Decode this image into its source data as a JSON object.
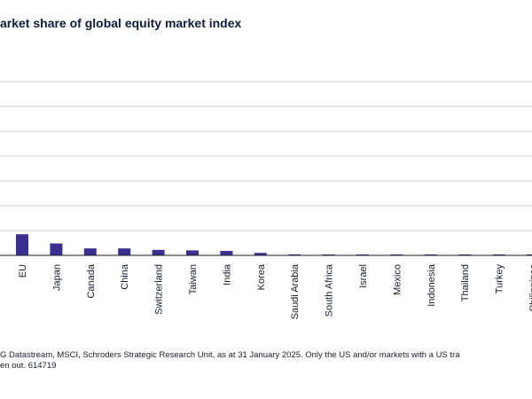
{
  "title": "arket share of global equity market index",
  "source": {
    "line1": "G Datastream, MSCI, Schroders Strategic Research Unit, as at 31 January 2025. Only the US and/or markets with a US tra",
    "line2": "en out. 614719"
  },
  "colors": {
    "bar": "#3b2f8f",
    "grid": "#c9ccd3",
    "title": "#0f1b3d"
  },
  "chart_data": {
    "type": "bar",
    "title": "arket share of global equity market index",
    "categories": [
      "EU",
      "Japan",
      "Canada",
      "China",
      "Switzerland",
      "Taiwan",
      "India",
      "Korea",
      "Saudi Arabia",
      "South Africa",
      "Israel",
      "Mexico",
      "Indonesia",
      "Thailand",
      "Turkey",
      "Philippines"
    ],
    "values": [
      8.5,
      4.8,
      2.8,
      2.8,
      2.2,
      2.0,
      1.8,
      1.0,
      0.4,
      0.3,
      0.2,
      0.2,
      0.2,
      0.1,
      0.1,
      0.05
    ],
    "ylim": [
      0,
      70
    ],
    "grid": true,
    "xlabel": "",
    "ylabel": ""
  }
}
